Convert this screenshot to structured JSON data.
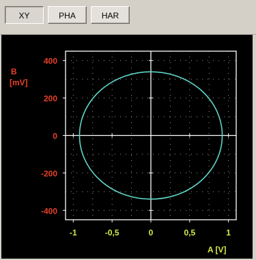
{
  "toolbar": {
    "buttons": [
      {
        "label": "XY",
        "active": true
      },
      {
        "label": "PHA",
        "active": false
      },
      {
        "label": "HAR",
        "active": false
      }
    ]
  },
  "colors": {
    "y_labels": "#e8402a",
    "x_labels": "#d8e84a",
    "trace": "#5fd6c8",
    "axis": "#ffffff",
    "background": "#000000"
  },
  "chart_data": {
    "type": "scatter",
    "ylabel": "B\n[mV]",
    "ylabel_line1": "B",
    "ylabel_line2": "[mV]",
    "xlabel": "A [V]",
    "xlim": [
      -1.1,
      1.1
    ],
    "ylim": [
      -450,
      450
    ],
    "x_ticks": [
      -1,
      -0.5,
      0,
      0.5,
      1
    ],
    "x_tick_labels": [
      "-1",
      "-0,5",
      "0",
      "0,5",
      "1"
    ],
    "y_ticks": [
      400,
      200,
      0,
      -200,
      -400
    ],
    "y_tick_labels": [
      "400",
      "200",
      "0",
      "-200",
      "-400"
    ],
    "grid": true,
    "series": [
      {
        "shape": "ellipse",
        "center": [
          0,
          0
        ],
        "radius_x": 0.92,
        "radius_y": 340
      }
    ]
  }
}
